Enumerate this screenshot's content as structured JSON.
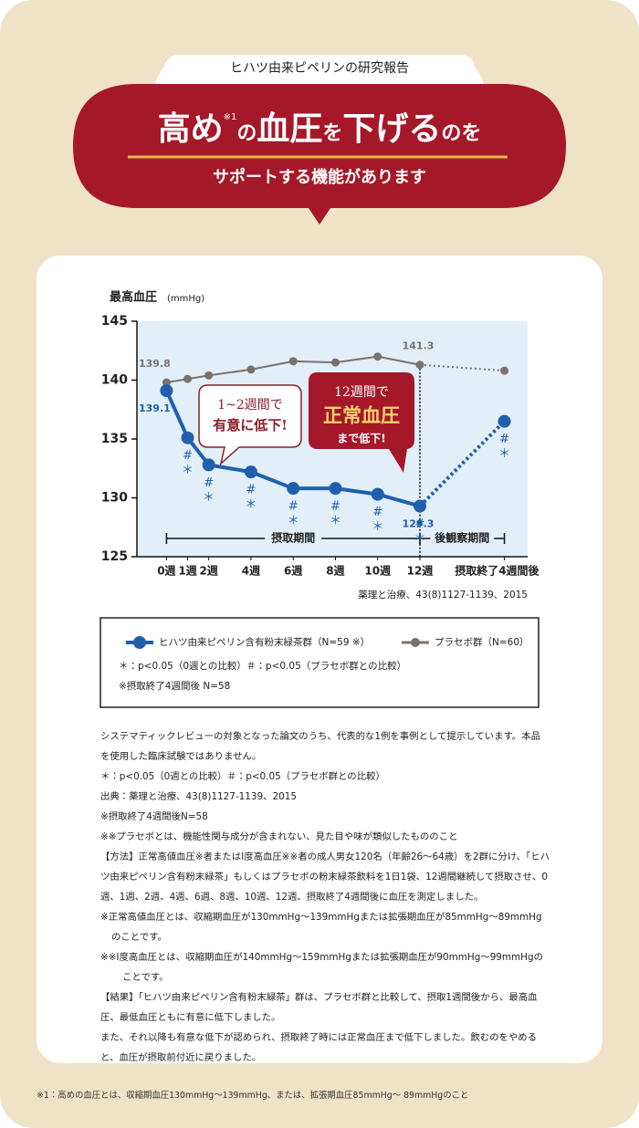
{
  "header": {
    "tag": "ヒハツ由来ピペリンの研究報告",
    "title": [
      "高め",
      "※1",
      "の",
      "血圧",
      "を",
      "下げる",
      "のを"
    ],
    "subtitle": "サポートする機能があります"
  },
  "chart_data": {
    "type": "line",
    "y_label": "最高血圧",
    "y_unit": "(mmHg)",
    "x": [
      0,
      1,
      2,
      4,
      6,
      8,
      10,
      12,
      16
    ],
    "xticks": [
      {
        "value": 0,
        "label": "0週"
      },
      {
        "value": 1,
        "label": "1週"
      },
      {
        "value": 2,
        "label": "2週"
      },
      {
        "value": 4,
        "label": "4週"
      },
      {
        "value": 6,
        "label": "6週"
      },
      {
        "value": 8,
        "label": "8週"
      },
      {
        "value": 10,
        "label": "10週"
      },
      {
        "value": 12,
        "label": "12週"
      },
      {
        "value": 16,
        "label": "摂取終了4週間後"
      }
    ],
    "xlim": [
      -1.4,
      17.1
    ],
    "ylim": [
      125,
      145
    ],
    "yticks": [
      125,
      130,
      135,
      140,
      145
    ],
    "series": [
      {
        "name": "ヒハツ由来ピペリン含有粉末緑茶群（N=59 ※）",
        "color": "#1f5fae",
        "values": [
          139.1,
          135.1,
          132.8,
          132.2,
          130.8,
          130.8,
          130.3,
          129.3,
          136.5
        ]
      },
      {
        "name": "プラセボ群（N=60）",
        "color": "#7a716c",
        "values": [
          139.8,
          140.1,
          140.4,
          140.9,
          141.6,
          141.5,
          142.0,
          141.3,
          140.8
        ]
      }
    ],
    "significance": [
      null,
      [
        "#",
        "＊"
      ],
      [
        "#",
        "＊"
      ],
      [
        "#",
        "＊"
      ],
      [
        "#",
        "＊"
      ],
      [
        "#",
        "＊"
      ],
      [
        "#",
        "＊"
      ],
      [
        "#",
        "＊"
      ],
      [
        "#",
        "＊"
      ]
    ],
    "periods": [
      "摂取期間",
      "後観察期間"
    ],
    "callouts": [
      [
        "1~2週間で",
        "有意に低下!"
      ],
      [
        "12週間で",
        "正常血圧",
        "まで低下!"
      ]
    ],
    "source": "薬理と治療、43(8)1127-1139、2015"
  },
  "legend_notes": [
    "＊：p<0.05（0週との比較）＃：p<0.05（プラセボ群との比較）",
    "※摂取終了4週間後 N=58"
  ],
  "notes": [
    "システマティックレビューの対象となった論文のうち、代表的な1例を事例として提示しています。本品を使用した臨床試験ではありません。",
    "＊：p<0.05（0週との比較）＃：p<0.05（プラセボ群との比較）",
    "出典：薬理と治療、43(8)1127-1139、2015",
    "※摂取終了4週間後N=58",
    "※※プラセボとは、機能性関与成分が含まれない、見た目や味が類似したもののこと",
    "【方法】正常高値血圧※者またはⅠ度高血圧※※者の成人男女120名（年齢26〜64歳）を2群に分け、「ヒハツ由来ピペリン含有粉末緑茶」もしくはプラセボの粉末緑茶飲料を1日1袋、12週間継続して摂取させ、0週、1週、2週、4週、6週、8週、10週、12週、摂取終了4週間後に血圧を測定しました。",
    "※正常高値血圧とは、収縮期血圧が130mmHg〜139mmHgまたは拡張期血圧が85mmHg〜89mmHgのことです。",
    "※※Ⅰ度高血圧とは、収縮期血圧が140mmHg〜159mmHgまたは拡張期血圧が90mmHg〜99mmHgのことです。",
    "【結果】「ヒハツ由来ピペリン含有粉末緑茶」群は、プラセボ群と比較して、摂取1週間後から、最高血圧、最低血圧ともに有意に低下しました。",
    "また、それ以降も有意な低下が認められ、摂取終了時には正常血圧まで低下しました。飲むのをやめると、血圧が摂取前付近に戻りました。"
  ],
  "footnote": "※1：高めの血圧とは、収縮期血圧130mmHg〜139mmHg、または、拡張期血圧85mmHg〜 89mmHgのこと"
}
